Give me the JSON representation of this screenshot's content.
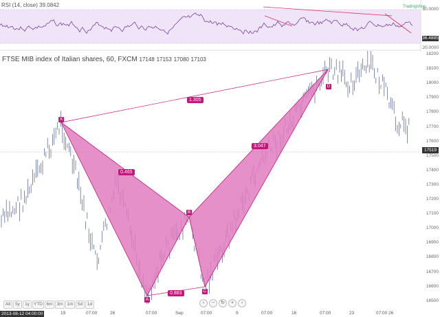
{
  "rsi": {
    "title": "RSI (14, close)",
    "value": "39.0842",
    "current_badge": "36.4885",
    "levels": [
      "80.0000",
      "20.0000"
    ]
  },
  "main": {
    "title": "FTSE MIB index of Italian shares, 60, FXCM",
    "ohlc": [
      "17148",
      "17153",
      "17080",
      "17103"
    ],
    "current_price": "17519"
  },
  "logo": "TradingView",
  "price_axis": [
    "18200",
    "18100",
    "18000",
    "17900",
    "17800",
    "17700",
    "17600",
    "17500",
    "17400",
    "17300",
    "17200",
    "17100",
    "17000",
    "16900",
    "16800",
    "16700",
    "16600",
    "16500"
  ],
  "date_axis": {
    "current": "2013-08-12 04:00:00",
    "labels": [
      "19",
      "07:00",
      "26",
      "07:00",
      "Sep",
      "07:00",
      "9",
      "07:00",
      "16",
      "07:00",
      "23",
      "07:00",
      "26"
    ]
  },
  "pattern": {
    "points": [
      "X",
      "A",
      "B",
      "C",
      "D"
    ],
    "ratios": {
      "xb": "0.465",
      "ac": "0.883",
      "bd": "3.047",
      "xd": "1.305"
    }
  },
  "zoom": {
    "buttons": [
      "All",
      "5y",
      "1y",
      "YTD",
      "6m",
      "3m",
      "1m",
      "5d",
      "1d"
    ]
  },
  "nav": {
    "buttons": [
      "‹",
      "−",
      "↻",
      "+",
      "›"
    ]
  },
  "colors": {
    "pattern_fill": "#e07cbf",
    "pattern_stroke": "#c2187a",
    "bars": "#4b5a8c",
    "rsi_band": "#efe4f8",
    "rsi_line": "#7b3fa0",
    "trend": "#e0305a"
  }
}
